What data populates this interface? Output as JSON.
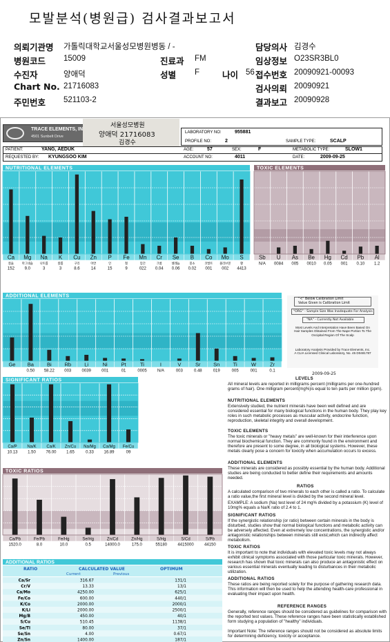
{
  "title": "모발분석(병원급) 검사결과보고서",
  "header": {
    "left": [
      {
        "label": "의뢰기관명",
        "value": "가톨릭대학교서울성모병원병동     / -"
      },
      {
        "label": "병원코드",
        "value": "15009"
      },
      {
        "label": "수진자",
        "value": "양애덕"
      },
      {
        "label": "Chart No.",
        "value": "21716083"
      },
      {
        "label": "주민번호",
        "value": "521103-2"
      }
    ],
    "mid": [
      {
        "label": "진료과",
        "value": "FM"
      },
      {
        "label": "성별",
        "value": "F"
      }
    ],
    "age": {
      "label": "나이",
      "value": "56"
    },
    "right": [
      {
        "label": "담당의사",
        "value": "김경수"
      },
      {
        "label": "임상정보",
        "value": "O23SR3BL0"
      },
      {
        "label": "접수번호",
        "value": "20090921-00093"
      },
      {
        "label": "검사의뢰",
        "value": "20090921"
      },
      {
        "label": "결과보고",
        "value": "20090928"
      }
    ]
  },
  "report": {
    "lab_name": "TRACE ELEMENTS, INC.",
    "lab_addr": "4501 Sunbelt Drive",
    "stamp_lines": [
      "서울성모병원",
      "양애덕 21716083",
      "김경수"
    ],
    "lab_no_label": "LABORATORY NO:",
    "lab_no": "955881",
    "profile_label": "PROFILE NO:",
    "profile": "2",
    "sample_label": "SAMPLE TYPE:",
    "sample": "SCALP",
    "patient_label": "PATIENT:",
    "patient": "YANG, AEDUK",
    "age_label": "AGE:",
    "age": "57",
    "sex_label": "SEX:",
    "sex": "F",
    "metabolic_label": "METABOLIC TYPE:",
    "metabolic": "SLOW1",
    "requested_label": "REQUESTED BY:",
    "requested": "KYUNGSOO KIM",
    "account_label": "ACCOUNT NO:",
    "account": "4011",
    "date_label": "DATE:",
    "date": "2009-09-25"
  },
  "nutritional": {
    "title": "NUTRITIONAL ELEMENTS",
    "elements": [
      "Ca",
      "Mg",
      "Na",
      "K",
      "Cu",
      "Zn",
      "P",
      "Fe",
      "Mn",
      "Cr",
      "Se",
      "B",
      "Co",
      "Mo",
      "S"
    ],
    "sublabels": [
      "칼슘",
      "마그네슘",
      "나트륨",
      "칼륨",
      "구리",
      "아연",
      "인",
      "철",
      "망간",
      "크롬",
      "셀레늄",
      "붕소",
      "코발트",
      "몰리브덴",
      "황"
    ],
    "values": [
      "152",
      "9.0",
      "3",
      "3",
      "8.6",
      "14",
      "15",
      "9",
      "022",
      "0.04",
      "0.06",
      "0.02",
      "001",
      "002",
      "4413"
    ],
    "levels": [
      0.78,
      0.46,
      0.22,
      0.2,
      0.96,
      0.52,
      0.42,
      0.45,
      0.12,
      0.1,
      0.2,
      0.1,
      0.06,
      0.08,
      0.9
    ]
  },
  "toxic": {
    "title": "TOXIC ELEMENTS",
    "elements": [
      "Sb",
      "U",
      "As",
      "Be",
      "Hg",
      "Cd",
      "Pb",
      "Al"
    ],
    "values": [
      "N/A",
      "0084",
      "005",
      "0010",
      "0.05",
      "001",
      "0.10",
      "1.2"
    ],
    "levels": [
      0.0,
      0.08,
      0.1,
      0.06,
      0.16,
      0.04,
      0.09,
      0.1
    ]
  },
  "additional": {
    "title": "ADDITIONAL ELEMENTS",
    "elements": [
      "Ge",
      "Ba",
      "Bi",
      "Rb",
      "Li",
      "Ni",
      "Pt",
      "Ti",
      "I",
      "V",
      "Sr",
      "Sn",
      "Ti",
      "W",
      "Zr"
    ],
    "values": [
      "",
      "0.50",
      "58.22",
      "003",
      "0039",
      "001",
      "01",
      "0005",
      "N/A",
      "003",
      "0.48",
      "019",
      "005",
      "001",
      "0.1"
    ],
    "levels": [
      0.38,
      0.92,
      0.18,
      0.08,
      0.1,
      0.05,
      0.04,
      0.03,
      0,
      0.04,
      0.45,
      0.2,
      0.08,
      0.05,
      0.06
    ]
  },
  "legend_box": {
    "l1": "\"<\" Below Calibration Limit",
    "l1b": "Value Given is Calibration Limit",
    "l2": "\"ORG\" - Sample Size Was Inadequate For Analysis",
    "l3": "\"NA\" - Currently Not Available",
    "l4": "Most Levels And Interpretation Have Been Based On Hair Samples Obtained From The Nape Portion To The Occipital Region Of The Scalp",
    "l5": "Laboratory Analysis Provided by Trace Elements, Inc. A CLIA Licensed Clinical Laboratory, No. 45 D0481787",
    "date": "2009-09-25"
  },
  "significant": {
    "title": "SIGNIFICANT RATIOS",
    "ratios": [
      "Ca/P",
      "Na/K",
      "Ca/K",
      "Zn/Cu",
      "Na/Mg",
      "Ca/Mg",
      "Fe/Cu"
    ],
    "values": [
      "10.13",
      "1.50",
      "76.00",
      "1.65",
      "0.33",
      "16.89",
      "09"
    ],
    "levels": [
      0.98,
      0.42,
      0.98,
      0.36,
      0.05,
      0.98,
      0.22
    ]
  },
  "toxic_ratios": {
    "title": "TOXIC RATIOS",
    "ratios": [
      "Ca/Pb",
      "Fe/Pb",
      "Fe/Hg",
      "Se/Hg",
      "Zn/Cd",
      "Zn/Hg",
      "S/Hg",
      "S/Cd",
      "S/Pb"
    ],
    "values": [
      "1520.0",
      "8.0",
      "10.0",
      "0.5",
      "14000.0",
      "175.0",
      "55180",
      "4415000",
      "44150"
    ],
    "levels": [
      0.93,
      0.58,
      0.3,
      0.12,
      0.92,
      0.62,
      0.94,
      0.98,
      0.96
    ]
  },
  "additional_ratios": {
    "title": "ADDITIONAL RATIOS",
    "col_ratio": "RATIO",
    "col_calc": "CALCULATED VALUE",
    "col_current": "Current",
    "col_prev": "Previous",
    "col_opt": "OPTIMUM",
    "rows": [
      {
        "r": "Ca/Sr",
        "c": "316.67",
        "o": "131/1"
      },
      {
        "r": "Cr/V",
        "c": "13.33",
        "o": "13/1"
      },
      {
        "r": "Ca/Mo",
        "c": "4250.00",
        "o": "625/1"
      },
      {
        "r": "Fe/Co",
        "c": "600.00",
        "o": "440/1"
      },
      {
        "r": "K/Co",
        "c": "2000.00",
        "o": "2000/1"
      },
      {
        "r": "K/Li",
        "c": "2000.00",
        "o": "2500/1"
      },
      {
        "r": "Mg/B",
        "c": "450.00",
        "o": "40/1"
      },
      {
        "r": "S/Cu",
        "c": "510.45",
        "o": "1138/1"
      },
      {
        "r": "Se/Tl",
        "c": "80.00",
        "o": "37/1"
      },
      {
        "r": "Se/Sn",
        "c": "4.00",
        "o": "0.67/1"
      },
      {
        "r": "Zn/Sn",
        "c": "1400.00",
        "o": "187/1"
      }
    ]
  },
  "info": {
    "levels_h": "LEVELS",
    "levels": "All mineral levels are reported in milligrams percent (milligrams per one-hundred grams of hair). One milligram percent(mg%)is equal to ten parts per million (ppm).",
    "nut_h": "NUTRITIONAL ELEMENTS",
    "nut": "Extensively studied, the nutrient minerals have been well defined and are considered essential for many biological functions in the human body. They play key roles in such metabolic processes as muscular activity, endocrine function, reproduction, skeletal integrity and overall development.",
    "tox_h": "TOXIC ELEMENTS",
    "tox": "The toxic minerals or \"heavy metals\" are well-known for their interference upon normal biochemical function. They are commonly found in the environment and therefore are present to some degree, in all biological systems. However, these metals clearly pose a concern for toxicity when accumulation occurs to excess.",
    "add_h": "ADDITIONAL ELEMENTS",
    "add": "These minerals are considered as possibly essential by the human body. Additional studies are being conducted to better define their requirements and amounts needed.",
    "ratios_h": "RATIOS",
    "ratios": "A calculated comparison of two minerals to each other is called a ratio. To calculate a ratio value,the first mineral level is divided by the second mineral level.",
    "ratios2": "EXAMPLE: A sodium (Na) test level of 24 mg% divided by a potassium (K) level of 10mg% equals a Na/K ratio of 2.4 to 1.",
    "sig_h": "SIGNIFICANT RATIOS",
    "sig": "If the synergistic relationship (or ratio) between certain minerals in the body is disturbed, studies show that normal biological functions and metabolic activity can be adversely affected. Even at extremely low concentrations, the synergistic and/or antagonistic relationships between minerals still exist,which can indirectly affect metabolism.",
    "toxr_h": "TOXIC RATIOS",
    "toxr": "It is important to note that individuals with elevated toxic levels may not always exhibit clinical symptoms associated with those particular toxic minerals. However, research has shown that toxic minerals can also produce an antagonistic effect on various essential minerals eventually leading to disturbances in their metabolic utilization.",
    "addr_h": "ADDITIONAL RATIOS",
    "addr": "These ratios are being reported solely for the purpose of gathering research data. This information will then be used to help the attending health-care professional in evaluating their impact upon health.",
    "ref_h": "REFERENCE RANGES",
    "ref": "Generally, reference ranges should be considered as guidelines for comparison with the reported test values. These reference ranges have been statistically established form studying a population of \"healthy\" individuals.",
    "ref2": "Important Note: The reference ranges should not be considered as absolute limits for determining deficiency, toxicity or acceptance."
  },
  "colors": {
    "teal": "#40c8d8",
    "teal_dark": "#1a9bb0",
    "toxic_bg": "#c9b7be",
    "toxic_dark": "#8f6f79",
    "bar": "#222222",
    "blue_text": "#1a60b8"
  }
}
